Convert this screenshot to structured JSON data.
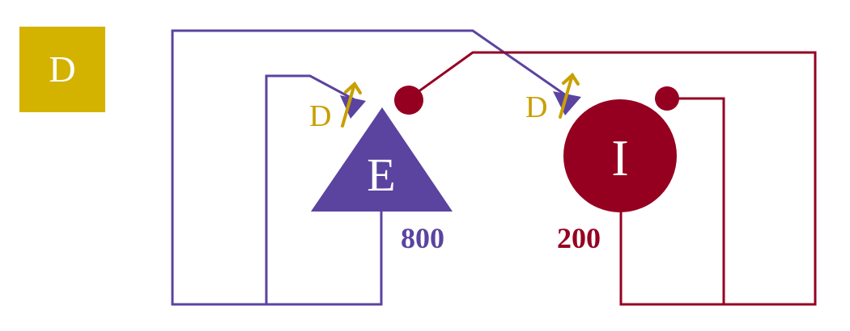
{
  "panel_label": "D",
  "excitatory": {
    "symbol": "E",
    "count": "800"
  },
  "inhibitory": {
    "symbol": "I",
    "count": "200"
  },
  "plasticity": {
    "synapse_to_e_label": "D",
    "synapse_to_i_label": "D"
  },
  "colors": {
    "excitatory": "#5b43a0",
    "inhibitory": "#950021",
    "plasticity": "#c8a000",
    "panel_badge": "#d4b200",
    "panel_text": "#ffffff"
  }
}
